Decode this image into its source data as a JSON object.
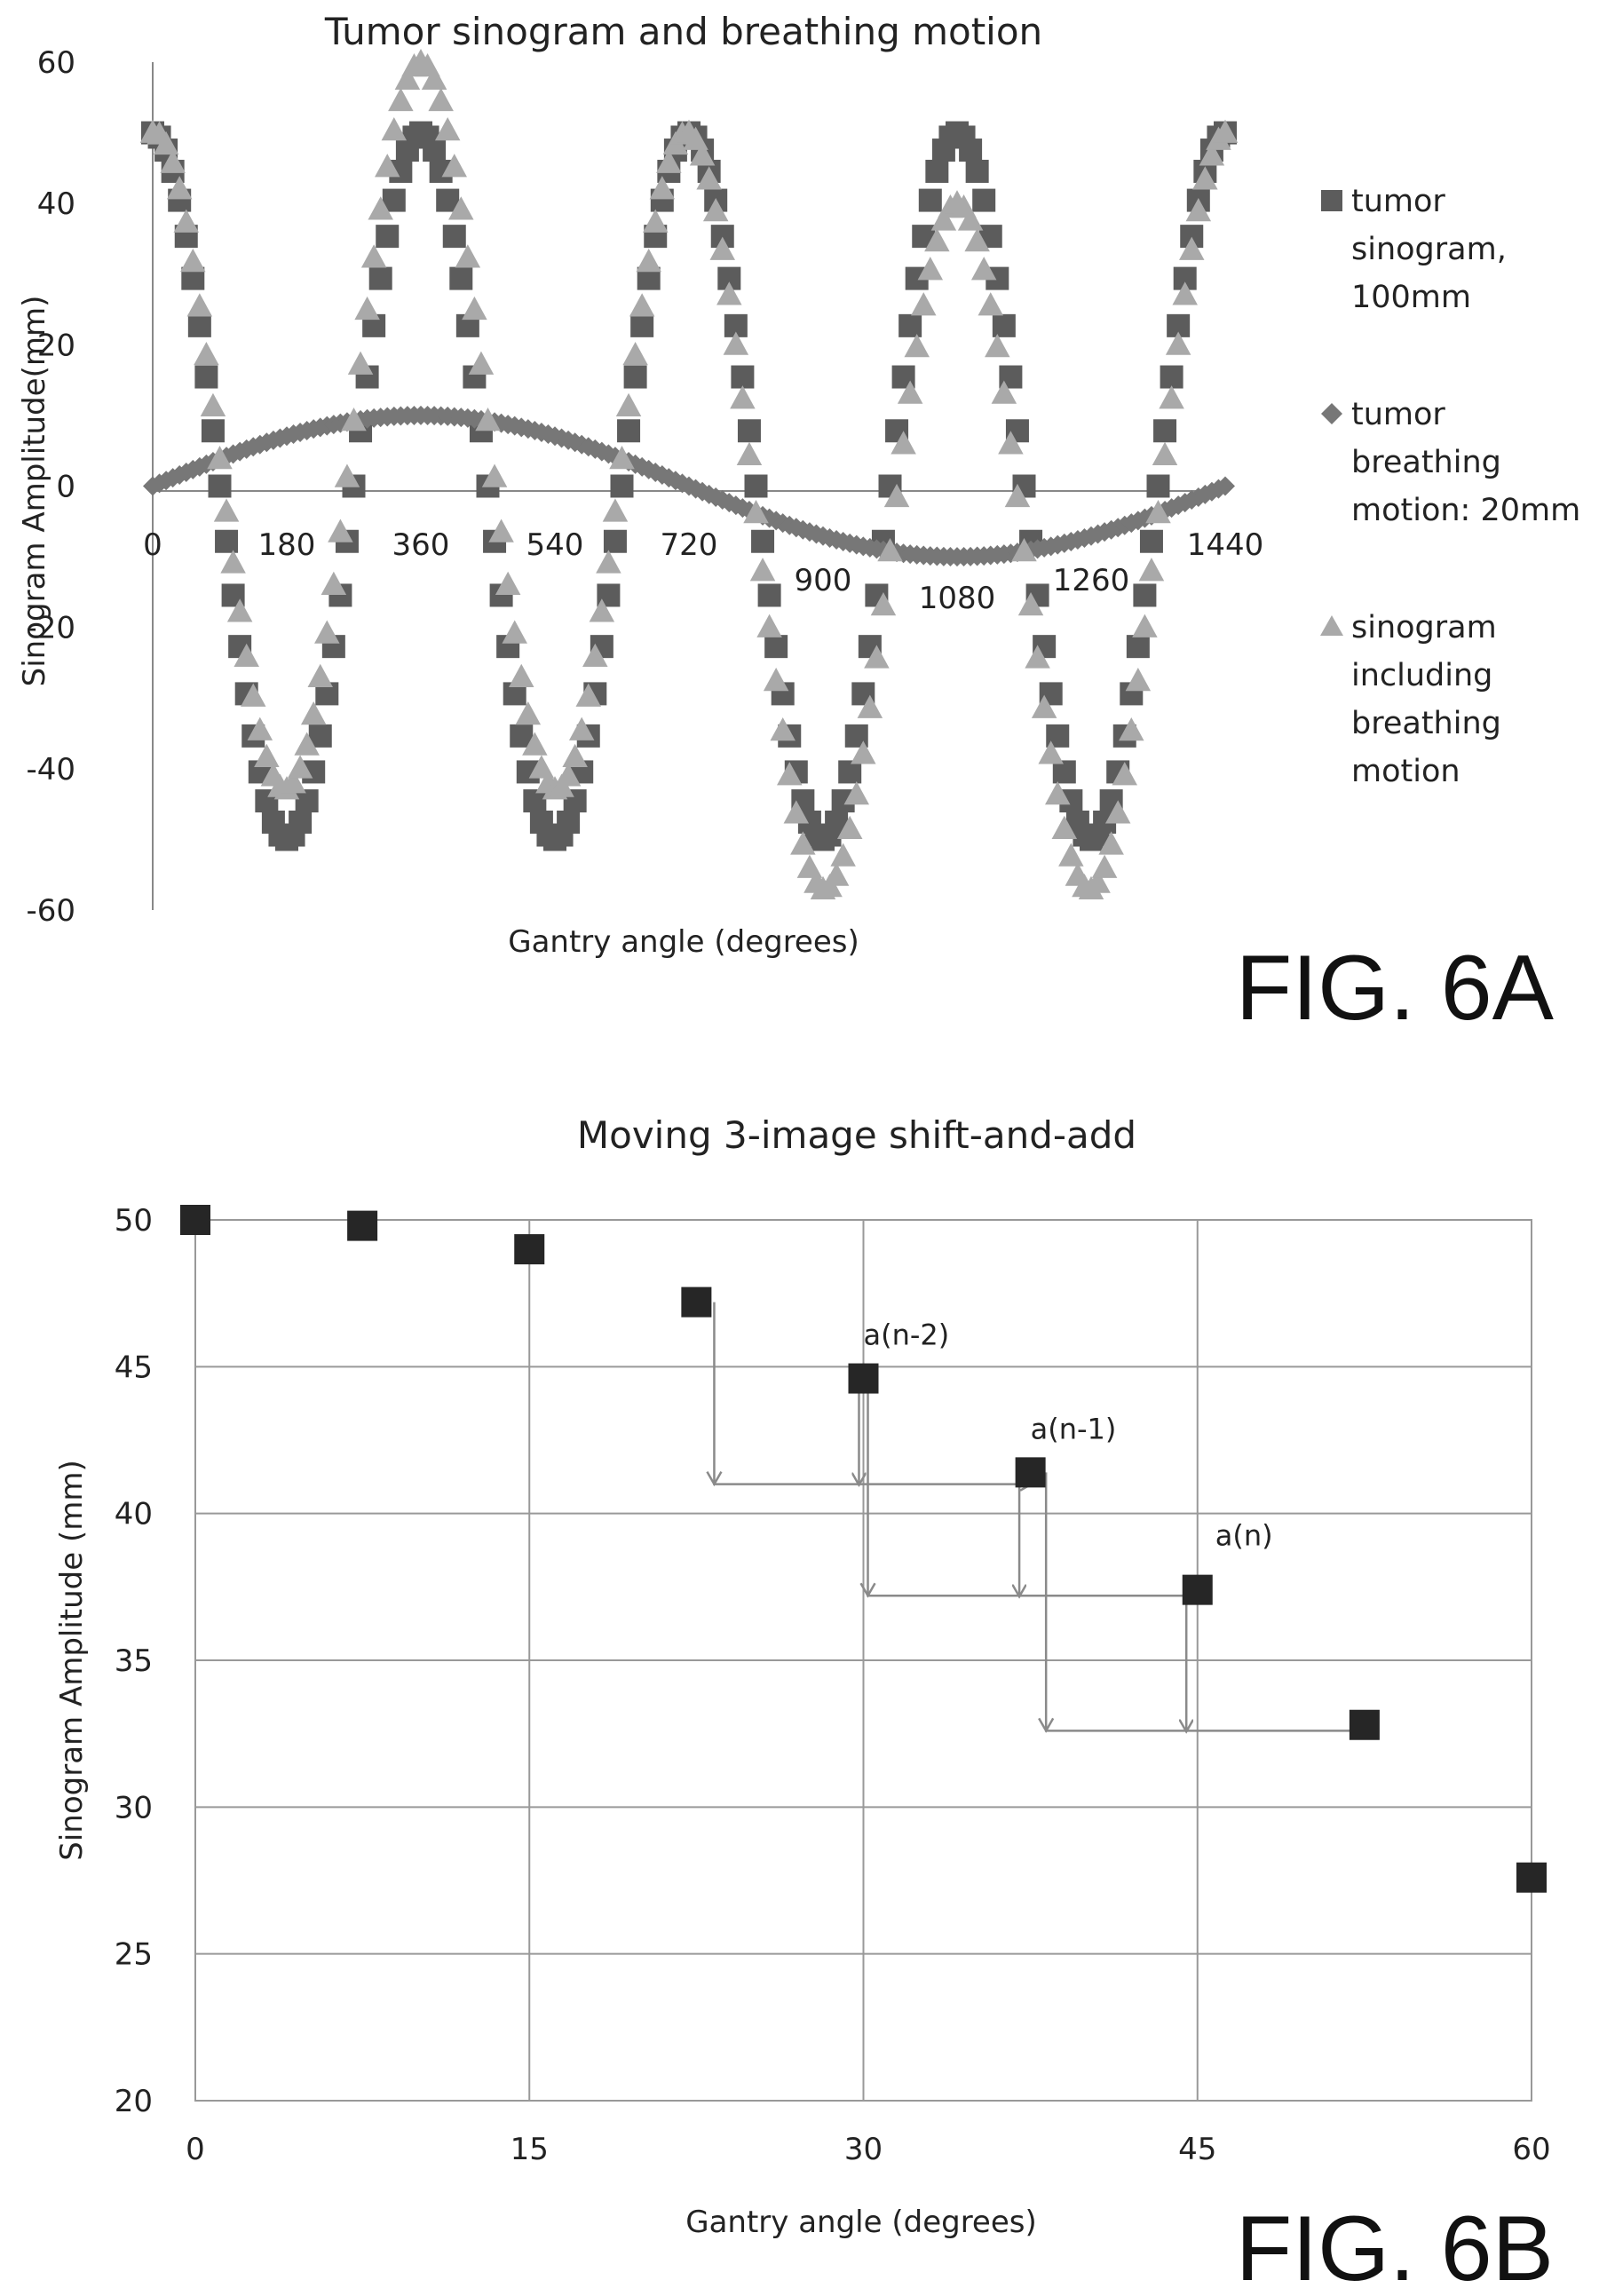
{
  "figure_a": {
    "label": "FIG. 6A",
    "title": "Tumor sinogram and breathing motion",
    "xlabel": "Gantry angle (degrees)",
    "ylabel": "Sinogram Amplitude(mm)",
    "x_ticks": [
      "0",
      "180",
      "360",
      "540",
      "720",
      "900",
      "1080",
      "1260",
      "1440"
    ],
    "y_ticks": [
      "60",
      "40",
      "20",
      "0",
      "-20",
      "-40",
      "-60"
    ],
    "legend": [
      {
        "name_lines": [
          "tumor",
          "sinogram,",
          "100mm"
        ],
        "marker": "square",
        "color": "#5c5c5c"
      },
      {
        "name_lines": [
          "tumor",
          "breathing",
          "motion: 20mm"
        ],
        "marker": "diamond",
        "color": "#777777"
      },
      {
        "name_lines": [
          "sinogram",
          "including",
          "breathing",
          "motion"
        ],
        "marker": "triangle",
        "color": "#a9a9a9"
      }
    ]
  },
  "figure_b": {
    "label": "FIG. 6B",
    "title": "Moving 3-image shift-and-add",
    "xlabel": "Gantry angle (degrees)",
    "ylabel": "Sinogram Amplitude (mm)",
    "x_ticks": [
      "0",
      "15",
      "30",
      "45",
      "60"
    ],
    "y_ticks": [
      "50",
      "45",
      "40",
      "35",
      "30",
      "25",
      "20"
    ],
    "annotations": [
      "a(n-2)",
      "a(n-1)",
      "a(n)"
    ]
  },
  "chart_data": [
    {
      "type": "scatter",
      "title": "Tumor sinogram and breathing motion",
      "xlabel": "Gantry angle (degrees)",
      "ylabel": "Sinogram Amplitude(mm)",
      "xlim": [
        0,
        1440
      ],
      "ylim": [
        -60,
        60
      ],
      "x_step": 9,
      "series": [
        {
          "name": "tumor sinogram, 100mm",
          "marker": "square",
          "color": "#5c5c5c",
          "amplitude": 50,
          "period_deg": 360,
          "phase": "cosine"
        },
        {
          "name": "tumor breathing motion: 20mm",
          "marker": "diamond",
          "color": "#777777",
          "amplitude": 10,
          "period_deg": 1440,
          "phase": "sine"
        },
        {
          "name": "sinogram including breathing motion",
          "marker": "triangle",
          "color": "#a9a9a9",
          "definition": "tumor sinogram + tumor breathing motion"
        }
      ],
      "grid": false,
      "legend": "right"
    },
    {
      "type": "scatter",
      "title": "Moving 3-image shift-and-add",
      "xlabel": "Gantry angle (degrees)",
      "ylabel": "Sinogram Amplitude (mm)",
      "xlim": [
        0,
        60
      ],
      "ylim": [
        20,
        50
      ],
      "grid": true,
      "x": [
        0,
        7.5,
        15,
        22.5,
        30,
        37.5,
        45,
        52.5,
        60
      ],
      "y": [
        50,
        49.8,
        49,
        47.2,
        44.6,
        41.4,
        37.4,
        32.8,
        27.6
      ],
      "annotations": [
        {
          "text": "a(n-2)",
          "x": 30,
          "y": 44.6
        },
        {
          "text": "a(n-1)",
          "x": 37.5,
          "y": 41.4
        },
        {
          "text": "a(n)",
          "x": 45,
          "y": 37.4
        }
      ],
      "arrows": [
        {
          "from": [
            23.3,
            47.2
          ],
          "corner": [
            23.3,
            41.0
          ],
          "to": [
            37.5,
            41.0
          ]
        },
        {
          "from": [
            30.2,
            44.6
          ],
          "corner": [
            30.2,
            37.2
          ],
          "to": [
            45,
            37.2
          ]
        },
        {
          "from": [
            38.2,
            41.4
          ],
          "corner": [
            38.2,
            32.6
          ],
          "to": [
            52.5,
            32.6
          ]
        },
        {
          "from": [
            29.8,
            44.6
          ],
          "to": [
            29.8,
            41.0
          ]
        },
        {
          "from": [
            37.0,
            41.4
          ],
          "to": [
            37.0,
            37.2
          ]
        },
        {
          "from": [
            44.5,
            37.4
          ],
          "to": [
            44.5,
            32.6
          ]
        }
      ]
    }
  ]
}
